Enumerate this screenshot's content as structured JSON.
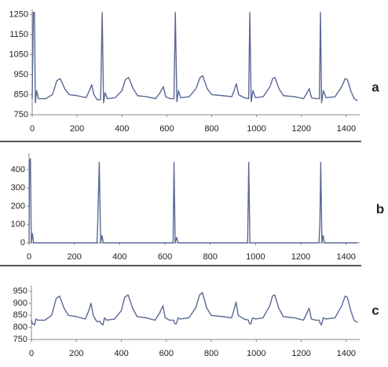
{
  "chart_data": [
    {
      "type": "line",
      "label": "a",
      "color": "#5b6896",
      "x": [
        0,
        5,
        10,
        14,
        20,
        28,
        60,
        90,
        110,
        125,
        145,
        165,
        200,
        240,
        255,
        265,
        275,
        290,
        305,
        312,
        318,
        325,
        335,
        370,
        400,
        415,
        430,
        450,
        470,
        510,
        550,
        570,
        585,
        595,
        615,
        632,
        638,
        645,
        652,
        662,
        700,
        730,
        748,
        760,
        780,
        800,
        850,
        890,
        900,
        910,
        920,
        945,
        965,
        970,
        976,
        984,
        995,
        1030,
        1060,
        1072,
        1082,
        1100,
        1120,
        1170,
        1210,
        1225,
        1235,
        1245,
        1265,
        1280,
        1285,
        1290,
        1298,
        1310,
        1350,
        1380,
        1395,
        1405,
        1420,
        1435,
        1450
      ],
      "values": [
        830,
        1260,
        1260,
        810,
        870,
        830,
        830,
        850,
        920,
        930,
        880,
        850,
        845,
        835,
        870,
        900,
        850,
        825,
        825,
        1260,
        810,
        860,
        830,
        835,
        870,
        925,
        935,
        880,
        845,
        840,
        830,
        860,
        890,
        840,
        830,
        830,
        1260,
        815,
        870,
        835,
        840,
        880,
        935,
        945,
        880,
        850,
        845,
        840,
        870,
        905,
        850,
        835,
        830,
        1260,
        815,
        870,
        835,
        840,
        890,
        930,
        935,
        880,
        845,
        840,
        830,
        860,
        880,
        835,
        830,
        830,
        1260,
        810,
        870,
        835,
        840,
        890,
        930,
        925,
        870,
        830,
        820
      ],
      "xlim": [
        0,
        1460
      ],
      "ylim": [
        750,
        1275
      ],
      "xticks": [
        0,
        200,
        400,
        600,
        800,
        1000,
        1200,
        1400
      ],
      "yticks": [
        750,
        850,
        950,
        1050,
        1150,
        1250
      ]
    },
    {
      "type": "line",
      "label": "b",
      "color": "#5b6896",
      "x": [
        0,
        2,
        6,
        10,
        15,
        20,
        300,
        303,
        310,
        316,
        322,
        328,
        636,
        640,
        645,
        652,
        658,
        965,
        970,
        975,
        1280,
        1284,
        1288,
        1293,
        1298,
        1304,
        1450
      ],
      "values": [
        0,
        450,
        460,
        0,
        50,
        0,
        0,
        100,
        440,
        0,
        40,
        0,
        0,
        440,
        0,
        30,
        0,
        0,
        440,
        0,
        0,
        100,
        440,
        0,
        40,
        0,
        0
      ],
      "xlim": [
        0,
        1460
      ],
      "ylim": [
        0,
        490
      ],
      "xticks": [
        0,
        200,
        400,
        600,
        800,
        1000,
        1200,
        1400
      ],
      "yticks": [
        0,
        100,
        200,
        300,
        400
      ]
    },
    {
      "type": "line",
      "label": "c",
      "color": "#5b6896",
      "x": [
        0,
        5,
        10,
        14,
        20,
        28,
        60,
        90,
        110,
        125,
        145,
        165,
        200,
        240,
        255,
        265,
        275,
        290,
        305,
        312,
        318,
        325,
        335,
        370,
        400,
        415,
        430,
        450,
        470,
        510,
        550,
        570,
        585,
        595,
        615,
        632,
        638,
        645,
        652,
        662,
        700,
        730,
        748,
        760,
        780,
        800,
        850,
        890,
        900,
        910,
        920,
        945,
        965,
        970,
        976,
        984,
        995,
        1030,
        1060,
        1072,
        1082,
        1100,
        1120,
        1170,
        1210,
        1225,
        1235,
        1245,
        1265,
        1280,
        1285,
        1290,
        1298,
        1310,
        1350,
        1380,
        1395,
        1405,
        1420,
        1435,
        1450
      ],
      "values": [
        830,
        815,
        815,
        810,
        835,
        830,
        830,
        850,
        920,
        930,
        880,
        850,
        845,
        835,
        870,
        900,
        850,
        825,
        825,
        815,
        810,
        840,
        830,
        835,
        870,
        925,
        935,
        880,
        845,
        840,
        830,
        860,
        890,
        840,
        830,
        830,
        815,
        815,
        840,
        835,
        840,
        880,
        935,
        945,
        880,
        850,
        845,
        840,
        870,
        905,
        850,
        835,
        830,
        815,
        815,
        840,
        835,
        840,
        890,
        930,
        935,
        880,
        845,
        840,
        830,
        860,
        880,
        835,
        830,
        830,
        815,
        810,
        840,
        835,
        840,
        890,
        930,
        925,
        870,
        830,
        820
      ],
      "xlim": [
        0,
        1460
      ],
      "ylim": [
        750,
        975
      ],
      "xticks": [
        0,
        200,
        400,
        600,
        800,
        1000,
        1200,
        1400
      ],
      "yticks": [
        750,
        800,
        850,
        900,
        950
      ]
    }
  ]
}
